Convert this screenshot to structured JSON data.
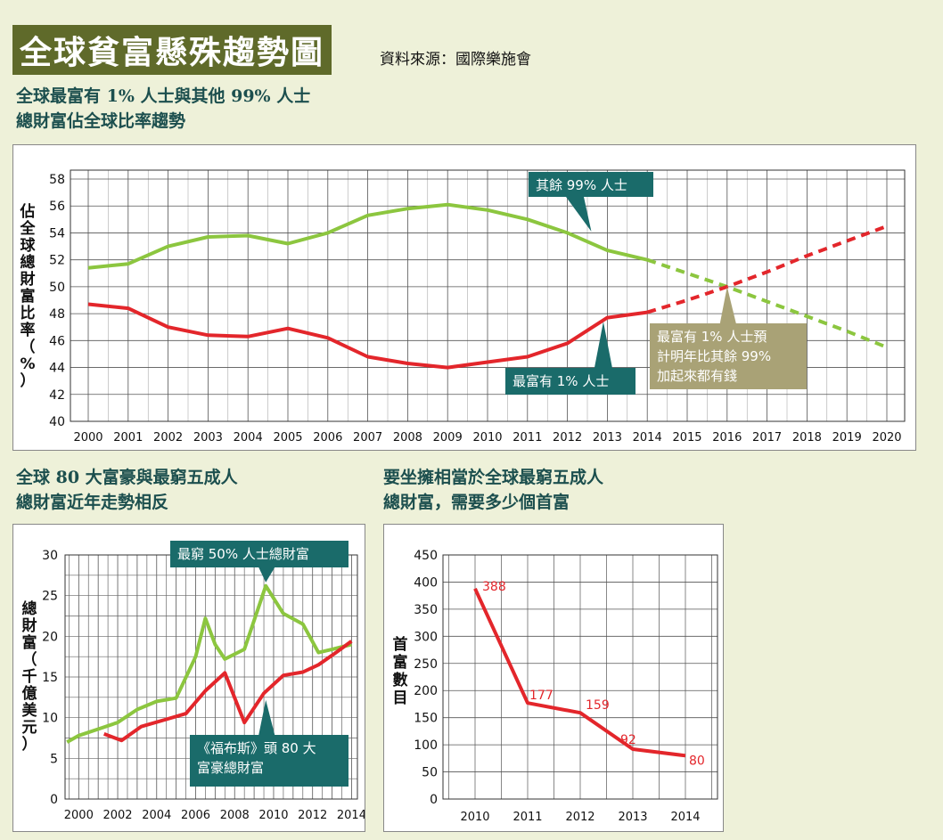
{
  "header": {
    "title": "全球貧富懸殊趨勢圖",
    "source": "資料來源：國際樂施會"
  },
  "colors": {
    "green": "#8cc63f",
    "red": "#e3262b",
    "callout_teal": "#1a6b6a",
    "callout_khaki": "#a9a276",
    "subtitle": "#1c4f4e"
  },
  "chart_data": [
    {
      "type": "line",
      "title_lines": [
        "全球最富有 1% 人士與其他 99% 人士",
        "總財富佔全球比率趨勢"
      ],
      "ylabel": "佔全球總財富比率（%）",
      "ylim": [
        40,
        58
      ],
      "yticks": [
        40,
        42,
        44,
        46,
        48,
        50,
        52,
        54,
        56,
        58
      ],
      "categories": [
        "2000",
        "2001",
        "2002",
        "2003",
        "2004",
        "2005",
        "2006",
        "2007",
        "2008",
        "2009",
        "2010",
        "2011",
        "2012",
        "2013",
        "2014",
        "2015",
        "2016",
        "2017",
        "2018",
        "2019",
        "2020"
      ],
      "series": [
        {
          "name": "其餘 99% 人士",
          "color": "#8cc63f",
          "actual": [
            [
              2000,
              51.4
            ],
            [
              2001,
              51.7
            ],
            [
              2002,
              53
            ],
            [
              2003,
              53.7
            ],
            [
              2004,
              53.8
            ],
            [
              2005,
              53.2
            ],
            [
              2006,
              54
            ],
            [
              2007,
              55.3
            ],
            [
              2008,
              55.8
            ],
            [
              2009,
              56.1
            ],
            [
              2010,
              55.7
            ],
            [
              2011,
              55
            ],
            [
              2012,
              54
            ],
            [
              2013,
              52.7
            ],
            [
              2014,
              52
            ]
          ],
          "projected": [
            [
              2014,
              52
            ],
            [
              2015,
              51
            ],
            [
              2016,
              50
            ],
            [
              2017,
              48.9
            ],
            [
              2018,
              47.8
            ],
            [
              2019,
              46.7
            ],
            [
              2020,
              45.5
            ]
          ]
        },
        {
          "name": "最富有 1% 人士",
          "color": "#e3262b",
          "actual": [
            [
              2000,
              48.7
            ],
            [
              2001,
              48.4
            ],
            [
              2002,
              47
            ],
            [
              2003,
              46.4
            ],
            [
              2004,
              46.3
            ],
            [
              2005,
              46.9
            ],
            [
              2006,
              46.2
            ],
            [
              2007,
              44.8
            ],
            [
              2008,
              44.3
            ],
            [
              2009,
              44
            ],
            [
              2010,
              44.4
            ],
            [
              2011,
              44.8
            ],
            [
              2012,
              45.8
            ],
            [
              2013,
              47.7
            ],
            [
              2014,
              48.1
            ]
          ],
          "projected": [
            [
              2014,
              48.1
            ],
            [
              2015,
              49
            ],
            [
              2016,
              50
            ],
            [
              2017,
              51.1
            ],
            [
              2018,
              52.3
            ],
            [
              2019,
              53.4
            ],
            [
              2020,
              54.5
            ]
          ]
        }
      ],
      "annotations": [
        "其餘 99% 人士",
        "最富有 1% 人士",
        "最富有 1% 人士預計明年比其餘 99%加起來都有錢"
      ],
      "callout_lines": [
        "最富有 1% 人士預",
        "計明年比其餘 99%",
        "加起來都有錢"
      ],
      "grid": true
    },
    {
      "type": "line",
      "title_lines": [
        "全球 80 大富豪與最窮五成人",
        "總財富近年走勢相反"
      ],
      "ylabel": "總財富（千億美元）",
      "ylim": [
        0,
        30
      ],
      "yticks": [
        0,
        5,
        10,
        15,
        20,
        25,
        30
      ],
      "xticks": [
        2000,
        2002,
        2004,
        2006,
        2008,
        2010,
        2012,
        2014
      ],
      "xlim": [
        1999.3,
        2014.3
      ],
      "series": [
        {
          "name": "最窮 50% 人士總財富",
          "color": "#8cc63f",
          "points": [
            [
              1999.4,
              7
            ],
            [
              2000,
              7.8
            ],
            [
              2001,
              8.6
            ],
            [
              2002,
              9.4
            ],
            [
              2003,
              11
            ],
            [
              2004,
              12
            ],
            [
              2005,
              12.4
            ],
            [
              2006,
              17.5
            ],
            [
              2006.5,
              22.2
            ],
            [
              2007,
              19
            ],
            [
              2007.5,
              17.2
            ],
            [
              2008.5,
              18.4
            ],
            [
              2009.6,
              26.2
            ],
            [
              2010.5,
              22.8
            ],
            [
              2011.5,
              21.5
            ],
            [
              2012.3,
              18
            ],
            [
              2013,
              18.4
            ],
            [
              2014,
              19
            ]
          ]
        },
        {
          "name": "《福布斯》頭 80 大富豪總財富",
          "color": "#e3262b",
          "points": [
            [
              2001.3,
              8
            ],
            [
              2002.2,
              7.2
            ],
            [
              2003.2,
              8.9
            ],
            [
              2004.5,
              9.8
            ],
            [
              2005.5,
              10.5
            ],
            [
              2006.5,
              13.3
            ],
            [
              2007.5,
              15.5
            ],
            [
              2008.5,
              9.4
            ],
            [
              2009.5,
              13
            ],
            [
              2010.5,
              15.2
            ],
            [
              2011.5,
              15.6
            ],
            [
              2012.3,
              16.5
            ],
            [
              2013.2,
              18
            ],
            [
              2014,
              19.4
            ]
          ]
        }
      ],
      "annotations": [
        "最窮 50% 人士總財富",
        "《福布斯》頭 80 大富豪總財富"
      ],
      "callout_lines": [
        "《福布斯》頭 80 大",
        "富豪總財富"
      ],
      "grid": true
    },
    {
      "type": "line",
      "title_lines": [
        "要坐擁相當於全球最窮五成人",
        "總財富，需要多少個首富"
      ],
      "ylabel": "首富數目",
      "ylim": [
        0,
        450
      ],
      "yticks": [
        0,
        50,
        100,
        150,
        200,
        250,
        300,
        350,
        400,
        450
      ],
      "categories": [
        "2010",
        "2011",
        "2012",
        "2013",
        "2014"
      ],
      "values": [
        388,
        177,
        159,
        92,
        80
      ],
      "data_labels": [
        "388",
        "177",
        "159",
        "92",
        "80"
      ],
      "grid": true
    }
  ]
}
